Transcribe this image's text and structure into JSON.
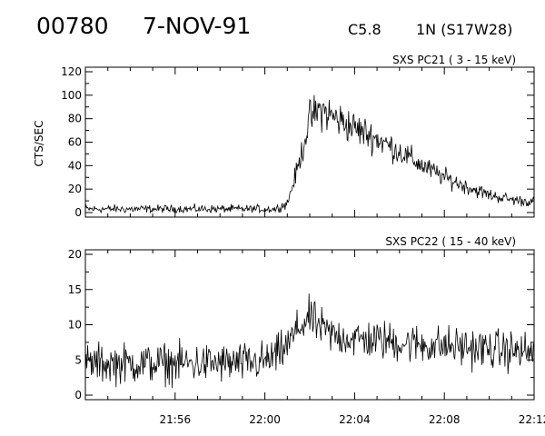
{
  "header": {
    "event_id": "00780",
    "date": "7-NOV-91",
    "goes_class": "C5.8",
    "location": "1N (S17W28)"
  },
  "chart_data": [
    {
      "type": "line",
      "title": "SXS PC21  (  3 - 15 keV)",
      "ylabel": "CTS/SEC",
      "xlabel": "",
      "ylim": [
        0,
        120
      ],
      "yticks": [
        0,
        20,
        40,
        60,
        80,
        100,
        120
      ],
      "xlim": [
        "21:52",
        "22:12"
      ],
      "xticks": [
        "21:56",
        "22:00",
        "22:04",
        "22:08",
        "22:12"
      ],
      "show_xtick_labels": false,
      "grid": false,
      "series": [
        {
          "x": [
            "21:52",
            "21:53",
            "21:54",
            "21:55",
            "21:56",
            "21:57",
            "21:58",
            "21:59",
            "22:00",
            "22:00:30",
            "22:01",
            "22:01:30",
            "22:02",
            "22:02:30",
            "22:03",
            "22:04",
            "22:05",
            "22:06",
            "22:07",
            "22:08",
            "22:09",
            "22:10",
            "22:11",
            "22:12"
          ],
          "values": [
            3,
            3,
            3,
            3,
            3,
            3,
            3,
            3,
            3,
            3,
            8,
            40,
            80,
            88,
            82,
            72,
            63,
            52,
            40,
            30,
            22,
            15,
            11,
            9
          ]
        }
      ]
    },
    {
      "type": "line",
      "title": "SXS PC22  ( 15 - 40 keV)",
      "ylabel": "",
      "xlabel": "",
      "ylim": [
        0,
        20
      ],
      "yticks": [
        0,
        5,
        10,
        15,
        20
      ],
      "xlim": [
        "21:52",
        "22:12"
      ],
      "xticks": [
        "21:56",
        "22:00",
        "22:04",
        "22:08",
        "22:12"
      ],
      "show_xtick_labels": true,
      "grid": false,
      "series": [
        {
          "x": [
            "21:52",
            "21:53",
            "21:54",
            "21:55",
            "21:56",
            "21:57",
            "21:58",
            "21:59",
            "22:00",
            "22:00:30",
            "22:01",
            "22:01:30",
            "22:02",
            "22:02:30",
            "22:03",
            "22:04",
            "22:05",
            "22:06",
            "22:07",
            "22:08",
            "22:09",
            "22:10",
            "22:11",
            "22:12"
          ],
          "values": [
            4.5,
            4.5,
            4.5,
            4.5,
            4.5,
            4.5,
            4.5,
            4.5,
            4.8,
            5.5,
            7,
            9.5,
            11,
            9.5,
            8.5,
            8,
            7.8,
            7.5,
            7.2,
            7,
            6.8,
            6.5,
            6.3,
            6
          ]
        }
      ]
    }
  ]
}
